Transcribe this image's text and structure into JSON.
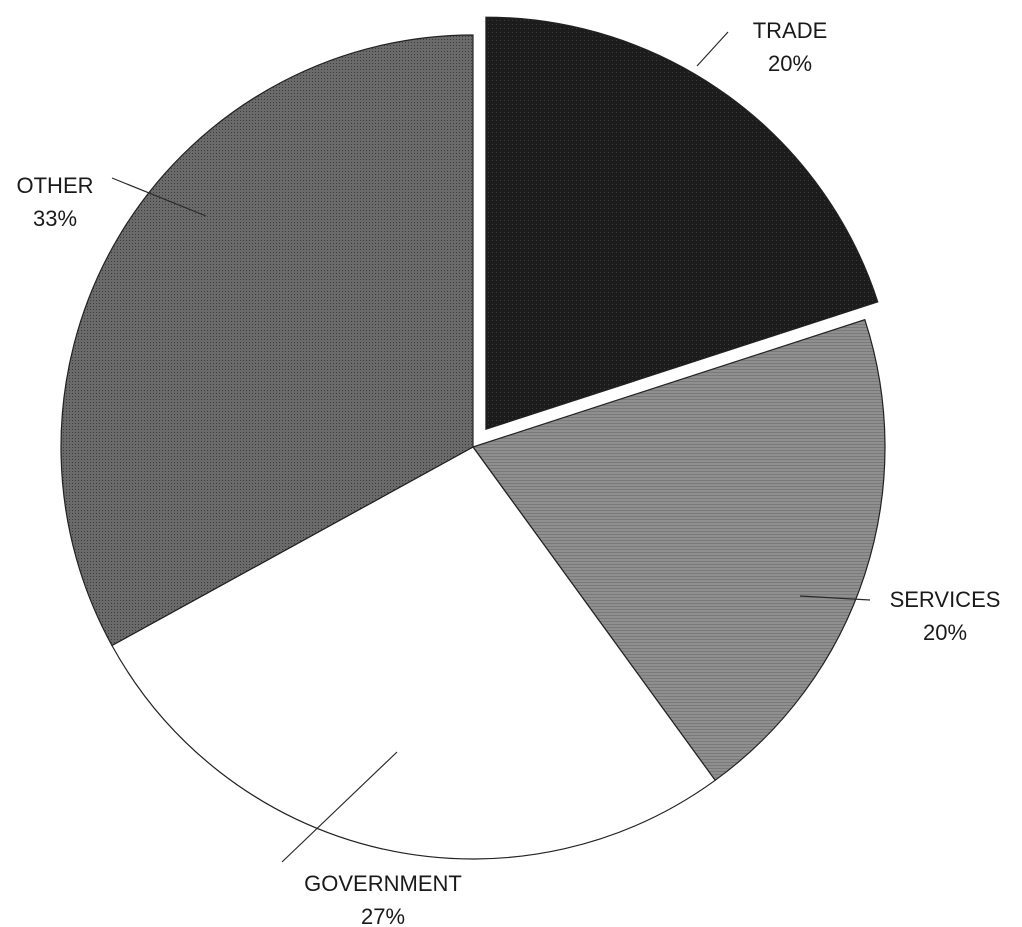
{
  "chart_data": {
    "type": "pie",
    "title": "",
    "slices": [
      {
        "label": "TRADE",
        "percent_label": "20%",
        "value": 20,
        "color": "#1c1c1c",
        "exploded": true
      },
      {
        "label": "SERVICES",
        "percent_label": "20%",
        "value": 20,
        "color": "#8e8e8e",
        "exploded": false
      },
      {
        "label": "GOVERNMENT",
        "percent_label": "27%",
        "value": 27,
        "color": "#ffffff",
        "exploded": false
      },
      {
        "label": "OTHER",
        "percent_label": "33%",
        "value": 33,
        "color": "#5e5e5e",
        "exploded": false
      }
    ],
    "start_angle_deg": 0,
    "direction": "clockwise",
    "legend": "none"
  }
}
